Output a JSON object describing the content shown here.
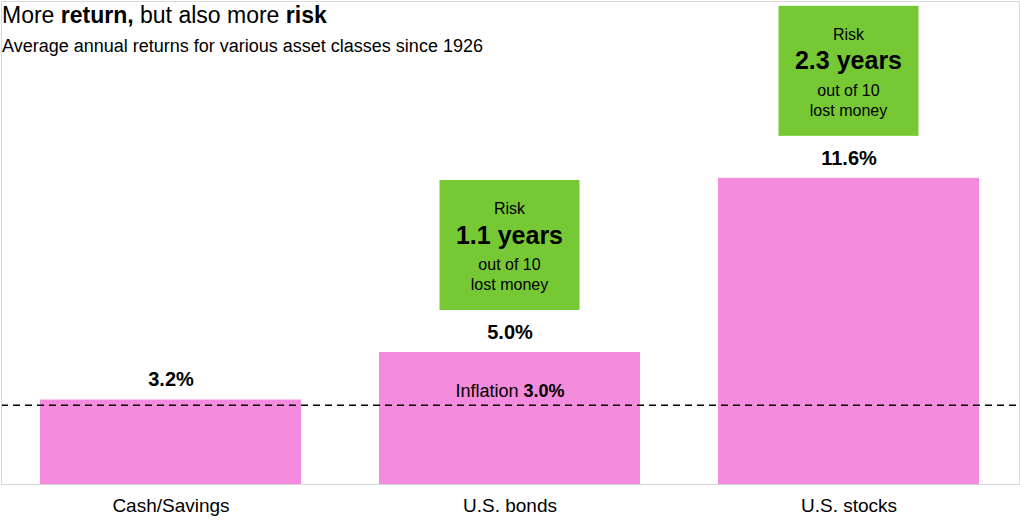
{
  "chart_data": {
    "type": "bar",
    "title": "More return, but also more risk",
    "title_emphasis": [
      "return,",
      "risk"
    ],
    "subtitle": "Average annual returns for various asset classes since 1926",
    "categories": [
      "Cash/Savings",
      "U.S. bonds",
      "U.S. stocks"
    ],
    "values": [
      3.2,
      5.0,
      11.6
    ],
    "value_labels": [
      "3.2%",
      "5.0%",
      "11.6%"
    ],
    "data_labels": true,
    "color": "#f48bdc",
    "ylim": [
      0,
      18.3
    ],
    "yticks": [],
    "tick_labels": "x",
    "grid": false,
    "reference_line": {
      "label": "Inflation",
      "value": 3.0,
      "value_label": "3.0%",
      "line_style": "dashed"
    },
    "risk": {
      "title": "Risk",
      "values": [
        null,
        1.1,
        2.3
      ],
      "value_labels": [
        null,
        "1.1 years",
        "2.3 years"
      ],
      "note": [
        "out of 10",
        "lost money"
      ],
      "color": "#76c935"
    }
  }
}
